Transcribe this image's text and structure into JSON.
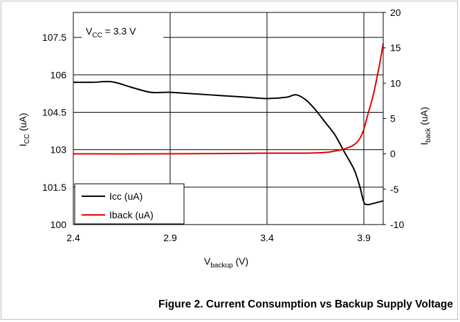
{
  "caption": "Figure 2. Current Consumption vs Backup Supply Voltage",
  "chart_data": {
    "type": "line",
    "annotation": {
      "main": "V",
      "sub": "CC",
      "rest": " = 3.3 V"
    },
    "xlabel": {
      "main": "V",
      "sub": "backup",
      "rest": " (V)"
    },
    "ylabel_left": {
      "main": "I",
      "sub": "CC",
      "rest": " (uA)"
    },
    "ylabel_right": {
      "main": "I",
      "sub": "back",
      "rest": " (uA)"
    },
    "xlim": [
      2.4,
      4.0
    ],
    "ylim_left": [
      100,
      108.5
    ],
    "ylim_right": [
      -10,
      20
    ],
    "x_ticks": [
      "2.4",
      "2.9",
      "3.4",
      "3.9"
    ],
    "y_left_ticks": [
      "100",
      "101.5",
      "103",
      "104.5",
      "106",
      "107.5"
    ],
    "y_right_ticks": [
      "-10",
      "-5",
      "0",
      "5",
      "10",
      "15",
      "20"
    ],
    "grid": true,
    "legend_position": "bottom-left",
    "series": [
      {
        "name": "Icc (uA)",
        "axis": "left",
        "color": "#000000",
        "x": [
          2.4,
          2.5,
          2.6,
          2.7,
          2.8,
          2.9,
          3.0,
          3.1,
          3.2,
          3.3,
          3.4,
          3.5,
          3.55,
          3.6,
          3.65,
          3.7,
          3.75,
          3.8,
          3.85,
          3.88,
          3.9,
          3.92,
          3.95,
          4.0
        ],
        "y": [
          105.7,
          105.7,
          105.72,
          105.5,
          105.3,
          105.3,
          105.25,
          105.2,
          105.15,
          105.1,
          105.05,
          105.1,
          105.2,
          105.0,
          104.6,
          104.1,
          103.6,
          102.9,
          102.2,
          101.5,
          100.9,
          100.8,
          100.85,
          100.95
        ]
      },
      {
        "name": "Iback (uA)",
        "axis": "right",
        "color": "#e00000",
        "x": [
          2.4,
          2.8,
          3.2,
          3.4,
          3.6,
          3.7,
          3.75,
          3.8,
          3.85,
          3.88,
          3.9,
          3.92,
          3.95,
          3.98,
          4.0
        ],
        "y": [
          0,
          0,
          0.05,
          0.1,
          0.1,
          0.2,
          0.4,
          0.7,
          1.3,
          2.2,
          3.5,
          5.5,
          8.5,
          12.5,
          15.6
        ]
      }
    ]
  }
}
